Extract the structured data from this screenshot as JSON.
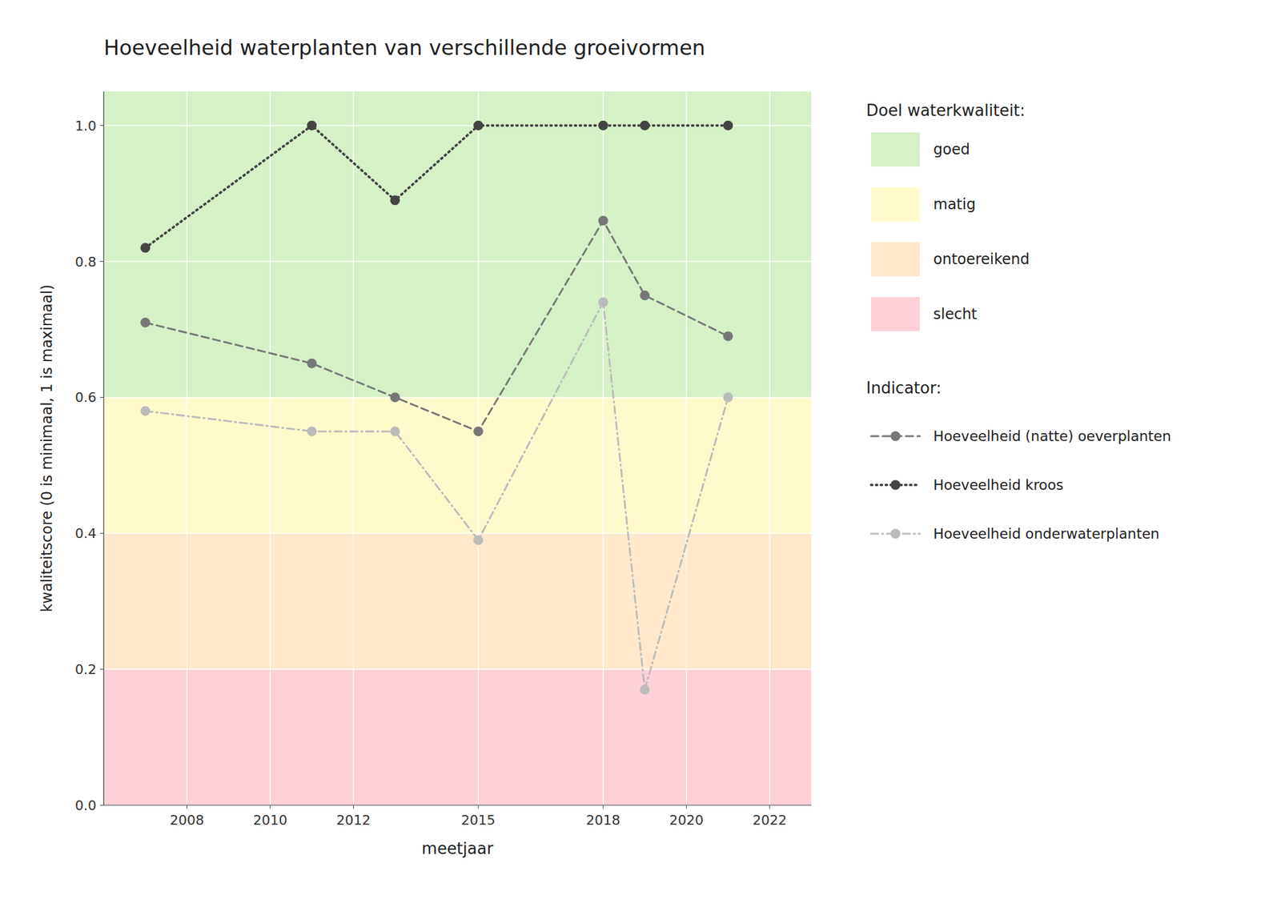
{
  "chart_data": {
    "type": "line",
    "title": "Hoeveelheid waterplanten van verschillende groeivormen",
    "x_label": "meetjaar",
    "y_label": "kwaliteitscore (0 is minimaal, 1 is maximaal)",
    "xlim": [
      2006.0,
      2023.0
    ],
    "ylim": [
      0.0,
      1.05
    ],
    "xticks": [
      2008,
      2010,
      2012,
      2015,
      2018,
      2020,
      2022
    ],
    "yticks": [
      {
        "value": 0.0,
        "label": "0.0"
      },
      0.2,
      0.4,
      0.6,
      0.8,
      {
        "value": 1.0,
        "label": "1.0"
      }
    ],
    "grid": true,
    "x": [
      2007,
      2011,
      2013,
      2015,
      2018,
      2019,
      2021
    ],
    "bands_title": "Doel waterkwaliteit:",
    "bands": [
      {
        "name": "goed",
        "from": 0.6,
        "to": 1.05,
        "color": "#d6f0c8"
      },
      {
        "name": "matig",
        "from": 0.4,
        "to": 0.6,
        "color": "#fffacc"
      },
      {
        "name": "ontoereikend",
        "from": 0.2,
        "to": 0.4,
        "color": "#ffe8cc"
      },
      {
        "name": "slecht",
        "from": 0.0,
        "to": 0.2,
        "color": "#ffd0d8"
      }
    ],
    "series_title": "Indicator:",
    "series": [
      {
        "name": "Hoeveelheid (natte) oeverplanten",
        "color": "#777777",
        "line_style": "dashed",
        "marker": "circle",
        "values": [
          0.71,
          0.65,
          0.6,
          0.55,
          0.86,
          0.75,
          0.69
        ]
      },
      {
        "name": "Hoeveelheid kroos",
        "color": "#444444",
        "line_style": "dotted",
        "marker": "circle",
        "values": [
          0.82,
          1.0,
          0.89,
          1.0,
          1.0,
          1.0,
          1.0
        ]
      },
      {
        "name": "Hoeveelheid onderwaterplanten",
        "color": "#bbbbbb",
        "line_style": "dashdot",
        "marker": "circle",
        "values": [
          0.58,
          0.55,
          0.55,
          0.39,
          0.74,
          0.17,
          0.6
        ]
      }
    ]
  }
}
